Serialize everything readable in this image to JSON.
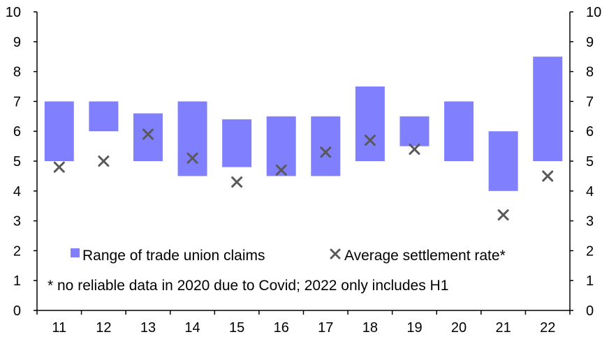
{
  "chart_data": {
    "type": "bar",
    "categories": [
      "11",
      "12",
      "13",
      "14",
      "15",
      "16",
      "17",
      "18",
      "19",
      "20",
      "21",
      "22"
    ],
    "series": [
      {
        "name": "Range of trade union claims",
        "kind": "floating-bar",
        "color": "#8080ff",
        "low": [
          5.0,
          6.0,
          5.0,
          4.5,
          4.8,
          4.5,
          4.5,
          5.0,
          5.5,
          5.0,
          4.0,
          5.0
        ],
        "high": [
          7.0,
          7.0,
          6.6,
          7.0,
          6.4,
          6.5,
          6.5,
          7.5,
          6.5,
          7.0,
          6.0,
          8.5
        ]
      },
      {
        "name": "Average settlement rate*",
        "kind": "scatter",
        "marker": "x",
        "color": "#595959",
        "values": [
          4.8,
          5.0,
          5.9,
          5.1,
          4.3,
          4.7,
          5.3,
          5.7,
          5.4,
          null,
          3.2,
          4.5
        ]
      }
    ],
    "ylim": [
      0,
      10
    ],
    "yticks": [
      "0",
      "1",
      "2",
      "3",
      "4",
      "5",
      "6",
      "7",
      "8",
      "9",
      "10"
    ],
    "left_axis": true,
    "right_axis": true,
    "grid": false,
    "legend_position": "bottom",
    "note": "* no reliable data in 2020 due to Covid; 2022 only includes H1"
  }
}
